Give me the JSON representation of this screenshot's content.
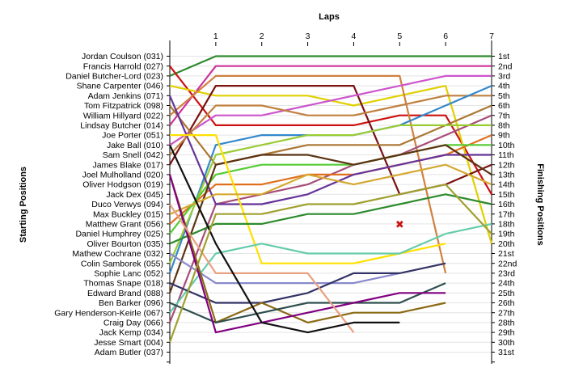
{
  "chart_data": {
    "type": "line",
    "title": "",
    "xlabel": "Laps",
    "ylabel_left": "Starting Positions",
    "ylabel_right": "Finishing Positions",
    "x_ticks": [
      "1",
      "2",
      "3",
      "4",
      "5",
      "6",
      "7"
    ],
    "starting_grid": [
      "Jordan Coulson (031)",
      "Francis Harrold (027)",
      "Daniel Butcher-Lord (023)",
      "Shane Carpenter (046)",
      "Adam Jenkins (071)",
      "Tom Fitzpatrick (098)",
      "William Hillyard (022)",
      "Lindsay Butcher (014)",
      "Joe Porter (051)",
      "Jake Ball (010)",
      "Sam Snell (042)",
      "James Blake (017)",
      "Joel Mulholland (020)",
      "Oliver Hodgson (019)",
      "Jack Dex (045)",
      "Duco Verwys (094)",
      "Max Buckley (015)",
      "Matthew Grant (056)",
      "Daniel Humphrey (025)",
      "Oliver Bourton (035)",
      "Mathew Cochrane (032)",
      "Colin Samborek (055)",
      "Sophie Lanc (052)",
      "Thomas Snape (018)",
      "Edward Brand (088)",
      "Ben Barker (096)",
      "Gary Henderson-Keirle (067)",
      "Craig Day (066)",
      "Jack Kemp (034)",
      "Jesse Smart (004)",
      "Adam Butler (037)"
    ],
    "finishing_positions": [
      "1st",
      "2nd",
      "3rd",
      "4th",
      "5th",
      "6th",
      "7th",
      "8th",
      "9th",
      "10th",
      "11th",
      "12th",
      "13th",
      "14th",
      "15th",
      "16th",
      "17th",
      "18th",
      "19th",
      "20th",
      "21st",
      "22nd",
      "23rd",
      "24th",
      "25th",
      "26th",
      "27th",
      "28th",
      "29th",
      "30th",
      "31st"
    ],
    "series": [
      {
        "color": "#2e8b2e",
        "positions": [
          3,
          1,
          1,
          1,
          1,
          1,
          1,
          1
        ]
      },
      {
        "color": "#cc3399",
        "positions": [
          8,
          2,
          2,
          2,
          2,
          2,
          2,
          2
        ]
      },
      {
        "color": "#cc1111",
        "positions": [
          2,
          8,
          8,
          8,
          8,
          7,
          7,
          15
        ]
      },
      {
        "color": "#e0d000",
        "positions": [
          4,
          5,
          5,
          5,
          6,
          5,
          4,
          20
        ]
      },
      {
        "color": "#d08040",
        "positions": [
          7,
          3,
          3,
          3,
          3,
          3,
          23
        ]
      },
      {
        "color": "#7a1010",
        "positions": [
          12,
          4,
          4,
          4,
          4,
          15,
          14,
          12
        ]
      },
      {
        "color": "#cc55cc",
        "positions": [
          10,
          7,
          7,
          6,
          5,
          4,
          3,
          3
        ]
      },
      {
        "color": "#c08040",
        "positions": [
          11,
          6,
          6,
          7,
          7,
          6,
          5,
          5
        ]
      },
      {
        "color": "#3388cc",
        "positions": [
          23,
          10,
          9,
          9,
          9,
          8,
          6,
          4
        ]
      },
      {
        "color": "#aa7733",
        "positions": [
          6,
          12,
          11,
          10,
          10,
          10,
          8,
          6
        ]
      },
      {
        "color": "#a64d79",
        "positions": [
          28,
          16,
          15,
          14,
          12,
          11,
          9,
          7
        ]
      },
      {
        "color": "#99cc33",
        "positions": [
          22,
          11,
          10,
          9,
          9,
          8,
          8,
          8
        ]
      },
      {
        "color": "#e07020",
        "positions": [
          18,
          14,
          14,
          13,
          13,
          12,
          11,
          9
        ]
      },
      {
        "color": "#55cc33",
        "positions": [
          19,
          13,
          12,
          12,
          12,
          11,
          10,
          10
        ]
      },
      {
        "color": "#663399",
        "positions": [
          5,
          16,
          16,
          15,
          13,
          12,
          11,
          11
        ]
      },
      {
        "color": "#5c3311",
        "positions": [
          25,
          12,
          11,
          11,
          12,
          11,
          10,
          13
        ]
      },
      {
        "color": "#ffe000",
        "positions": [
          9,
          9,
          22,
          22,
          22,
          21,
          20
        ]
      },
      {
        "color": "#d4a830",
        "positions": [
          17,
          15,
          15,
          13,
          14,
          13,
          12,
          14
        ]
      },
      {
        "color": "#8888cc",
        "positions": [
          21,
          24,
          24,
          24,
          24,
          23
        ]
      },
      {
        "color": "#2d8b2d",
        "positions": [
          20,
          18,
          18,
          17,
          17,
          16,
          15,
          16
        ]
      },
      {
        "color": "#66ccaa",
        "positions": [
          27,
          21,
          20,
          21,
          21,
          21,
          19,
          18
        ]
      },
      {
        "color": "#333366",
        "positions": [
          24,
          26,
          26,
          25,
          23,
          23,
          22
        ]
      },
      {
        "color": "#8b6914",
        "positions": [
          13,
          28,
          26,
          28,
          27,
          27,
          26
        ]
      },
      {
        "color": "#2f4f4f",
        "positions": [
          26,
          28,
          27,
          26,
          26,
          26,
          24
        ]
      },
      {
        "color": "#800080",
        "positions": [
          13,
          29,
          28,
          27,
          26,
          25,
          25
        ]
      },
      {
        "color": "#e8a080",
        "positions": [
          16,
          23,
          23,
          23,
          29
        ]
      },
      {
        "color": "#111111",
        "positions": [
          10,
          20,
          28,
          29,
          28,
          28
        ]
      },
      {
        "color": "#a0a030",
        "positions": [
          30,
          17,
          17,
          16,
          16,
          15,
          14,
          19
        ]
      }
    ],
    "annotations": [
      {
        "type": "retired-marker",
        "symbol": "✖",
        "x_lap": 5,
        "position": 18,
        "color": "#cc1111"
      }
    ],
    "grid": "horizontal"
  }
}
